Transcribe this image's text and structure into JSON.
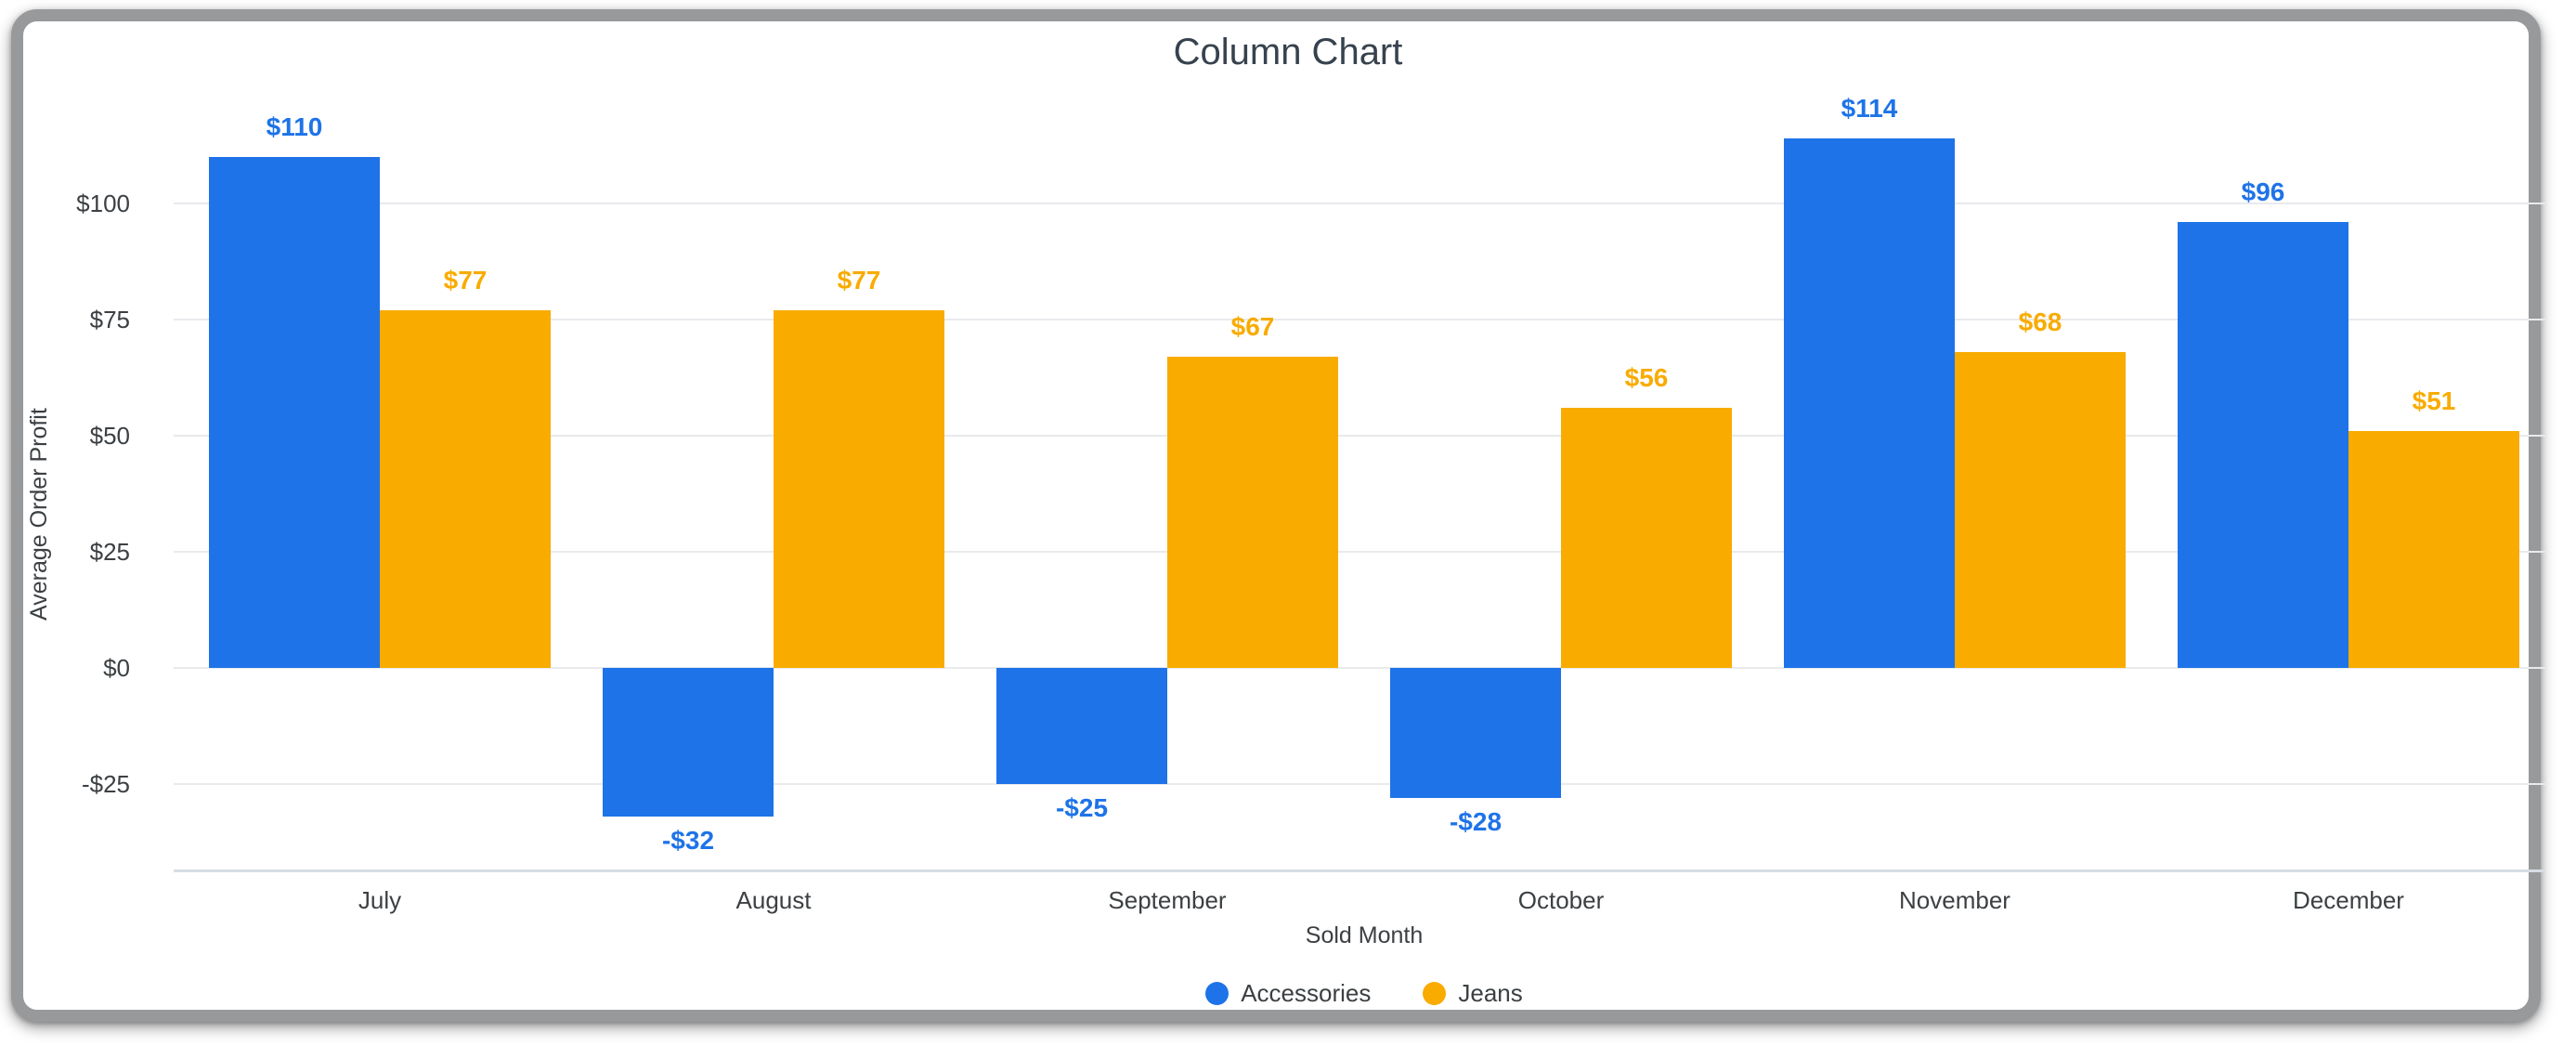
{
  "page": {
    "background": "#ffffff"
  },
  "card": {
    "border_color": "#97999B"
  },
  "chart_data": {
    "type": "bar",
    "title": "Column Chart",
    "xlabel": "Sold Month",
    "ylabel": "Average Order Profit",
    "categories": [
      "July",
      "August",
      "September",
      "October",
      "November",
      "December"
    ],
    "series": [
      {
        "name": "Accessories",
        "color": "#1E73E8",
        "values": [
          110,
          -32,
          -25,
          -28,
          114,
          96
        ],
        "labels": [
          "$110",
          "-$32",
          "-$25",
          "-$28",
          "$114",
          "$96"
        ]
      },
      {
        "name": "Jeans",
        "color": "#F9AB00",
        "values": [
          77,
          77,
          67,
          56,
          68,
          51
        ],
        "labels": [
          "$77",
          "$77",
          "$67",
          "$56",
          "$68",
          "$51"
        ]
      }
    ],
    "y_ticks": [
      {
        "value": 100,
        "label": "$100"
      },
      {
        "value": 75,
        "label": "$75"
      },
      {
        "value": 50,
        "label": "$50"
      },
      {
        "value": 25,
        "label": "$25"
      },
      {
        "value": 0,
        "label": "$0"
      },
      {
        "value": -25,
        "label": "-$25"
      }
    ],
    "ylim": [
      -44,
      118
    ],
    "grid": true,
    "legend_position": "bottom",
    "bar_value_labels": true,
    "text_color": "#3C4043",
    "gridline_color": "#E8EAED",
    "axisline_color": "#D8DDE4"
  }
}
